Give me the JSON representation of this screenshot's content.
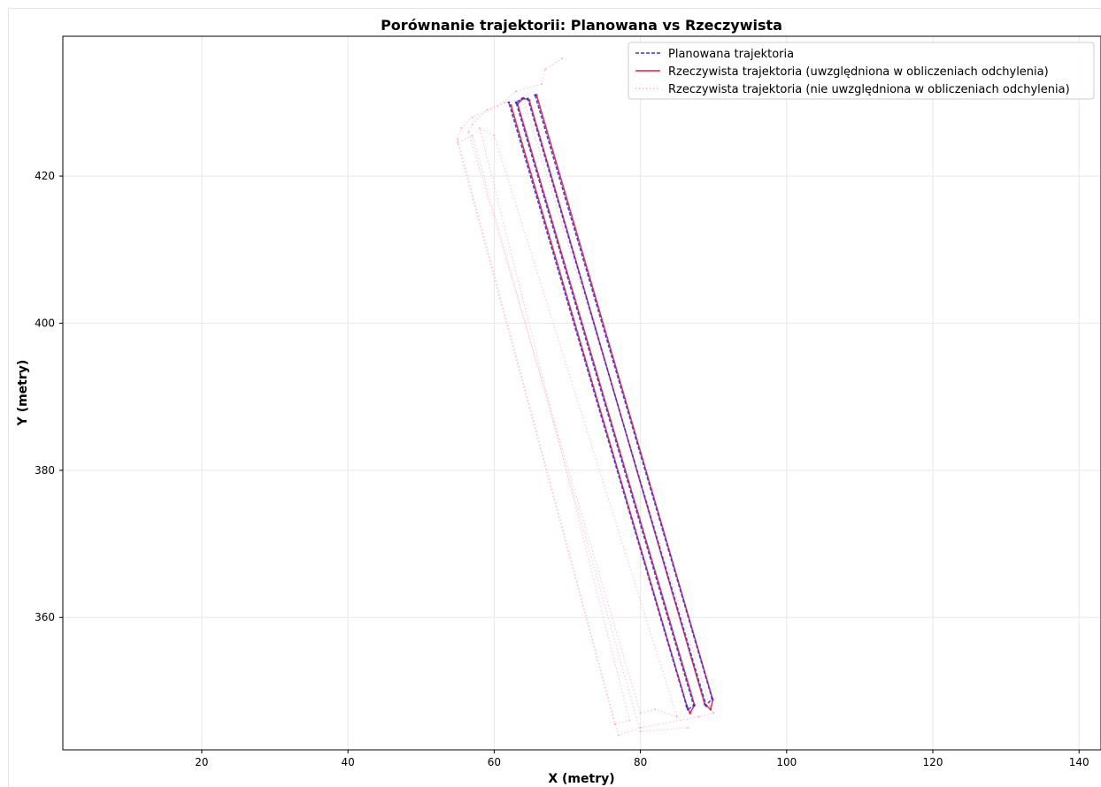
{
  "chart_data": {
    "type": "line",
    "title": "Porównanie trajektorii: Planowana vs Rzeczywista",
    "xlabel": "X (metry)",
    "ylabel": "Y (metry)",
    "xlim": [
      1,
      143
    ],
    "ylim": [
      342,
      439
    ],
    "xticks": [
      20,
      40,
      60,
      80,
      100,
      120,
      140
    ],
    "yticks": [
      360,
      380,
      400,
      420
    ],
    "grid": true,
    "legend_position": "top-right",
    "series": [
      {
        "name": "Planowana trajektoria",
        "color": "#3333dd",
        "style": "dashed",
        "x": [
          65.6,
          89.8,
          89.0,
          89.0,
          64.6,
          63.8,
          63.0,
          87.3,
          86.5,
          86.3,
          62.0
        ],
        "y": [
          431.0,
          349.0,
          348.0,
          348.0,
          430.5,
          430.5,
          430.0,
          348.0,
          347.5,
          348.0,
          430.0
        ]
      },
      {
        "name": "Rzeczywista trajektoria (uwzględniona w obliczeniach odchylenia)",
        "color": "#dd2244",
        "style": "solid",
        "x": [
          65.8,
          89.9,
          89.6,
          88.8,
          64.8,
          64.0,
          63.2,
          87.4,
          86.8,
          86.4,
          62.3
        ],
        "y": [
          431.0,
          348.8,
          347.5,
          348.2,
          430.3,
          430.6,
          429.8,
          348.1,
          347.0,
          347.8,
          429.6
        ]
      },
      {
        "name": "Rzeczywista trajektoria (nie uwzględniona w obliczeniach odchylenia)",
        "color": "#ffb0c0",
        "style": "dotted",
        "x": [
          69.3,
          67.0,
          66.5,
          63.0,
          60.5,
          57.0,
          55.5,
          55.0,
          77.0,
          80.0,
          88.0,
          90.0,
          89.5,
          64.0,
          61.5,
          59.0,
          57.0,
          56.5,
          80.0,
          82.0,
          85.0,
          60.0,
          58.0,
          78.5,
          76.5,
          55.0,
          57.0,
          80.0,
          86.5
        ],
        "y": [
          436.0,
          434.5,
          432.5,
          431.5,
          429.5,
          428.0,
          426.5,
          425.0,
          344.0,
          345.0,
          346.5,
          347.0,
          348.0,
          430.5,
          430.0,
          429.0,
          427.0,
          426.0,
          347.0,
          347.5,
          346.5,
          425.5,
          426.5,
          346.0,
          345.5,
          424.5,
          425.5,
          344.5,
          345.0
        ]
      }
    ]
  }
}
